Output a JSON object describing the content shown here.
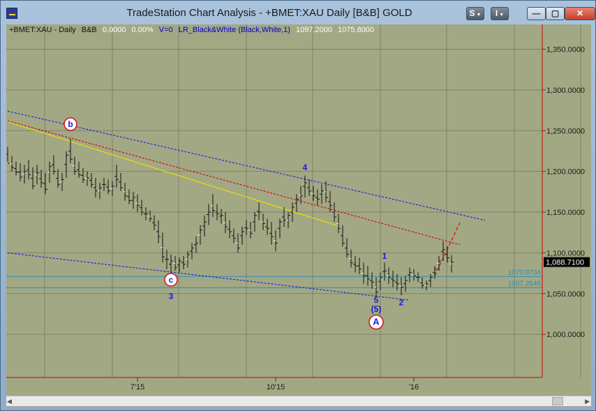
{
  "window": {
    "title": "TradeStation Chart Analysis - +BMET:XAU Daily [B&B] GOLD",
    "buttons": {
      "s_label": "S",
      "i_label": "I",
      "minimize_label": "—",
      "maximize_label": "▢",
      "close_label": "✕"
    }
  },
  "info_line": {
    "symbol": "+BMET:XAU - Daily",
    "datafeed": "B&B",
    "change": "0.0000",
    "change_pct": "0.00%",
    "volume": "V=0",
    "indicator": "LR_Black&White (Black,White,1)",
    "high": "1097.2000",
    "low": "1075.8000"
  },
  "colors": {
    "background": "#a3a884",
    "grid": "#7f8066",
    "axis_line": "#cc0000",
    "price_text": "#1a1a1a",
    "wave_label": "#1a1ad8",
    "channel": "#1b2ad9",
    "midline": "#cc1111",
    "trendline": "#e8e000",
    "horizontal_level": "#2b8fb5",
    "last_price_box": "#000000"
  },
  "chart_data": {
    "type": "bar",
    "instrument": "+BMET:XAU",
    "interval": "Daily",
    "x_axis_labels": [
      "7'15",
      "10'15",
      "'16"
    ],
    "y_axis_labels": [
      "1,000.0000",
      "1,050.0000",
      "1,100.0000",
      "1,150.0000",
      "1,200.0000",
      "1,250.0000",
      "1,300.0000",
      "1,350.0000"
    ],
    "ylim": [
      947,
      1365
    ],
    "y_ticks": [
      1000,
      1050,
      1100,
      1150,
      1200,
      1250,
      1300,
      1350
    ],
    "last_price": {
      "value": 1088.71,
      "label": "1,088.7100"
    },
    "horizontal_levels": [
      {
        "value": 1070.9734,
        "label": "1070.9734"
      },
      {
        "value": 1057.2646,
        "label": "1057.2646"
      }
    ],
    "wave_labels": [
      {
        "text": "b",
        "circled": true,
        "bar": 15,
        "price": 1258
      },
      {
        "text": "c",
        "circled": true,
        "bar": 39,
        "price": 1067
      },
      {
        "text": "3",
        "circled": false,
        "bar": 39,
        "price": 1047
      },
      {
        "text": "4",
        "circled": false,
        "bar": 71,
        "price": 1205
      },
      {
        "text": "1",
        "circled": false,
        "bar": 90,
        "price": 1096
      },
      {
        "text": "5",
        "circled": false,
        "bar": 88,
        "price": 1042
      },
      {
        "text": "(5)",
        "circled": false,
        "bar": 88,
        "price": 1031
      },
      {
        "text": "2",
        "circled": false,
        "bar": 94,
        "price": 1039
      },
      {
        "text": "A",
        "circled": true,
        "bar": 88,
        "price": 1015
      }
    ],
    "channel_lines": [
      {
        "name": "upper",
        "from": [
          0,
          1274
        ],
        "to": [
          114,
          1140
        ]
      },
      {
        "name": "lower",
        "from": [
          0,
          1100
        ],
        "to": [
          96,
          1042
        ]
      },
      {
        "name": "mid",
        "from": [
          0,
          1262
        ],
        "to": [
          108,
          1110
        ]
      },
      {
        "name": "trend",
        "from": [
          0,
          1261
        ],
        "to": [
          79,
          1133
        ]
      }
    ],
    "projection": {
      "from": [
        102,
        1072
      ],
      "to": [
        108,
        1137
      ]
    },
    "ohlc": [
      [
        1230,
        1212,
        1210
      ],
      [
        1219,
        1200,
        1205
      ],
      [
        1212,
        1195,
        1199
      ],
      [
        1210,
        1188,
        1193
      ],
      [
        1208,
        1185,
        1200
      ],
      [
        1214,
        1190,
        1196
      ],
      [
        1205,
        1178,
        1182
      ],
      [
        1208,
        1184,
        1198
      ],
      [
        1202,
        1180,
        1186
      ],
      [
        1198,
        1172,
        1178
      ],
      [
        1212,
        1186,
        1206
      ],
      [
        1220,
        1196,
        1200
      ],
      [
        1203,
        1180,
        1184
      ],
      [
        1198,
        1176,
        1190
      ],
      [
        1225,
        1192,
        1220
      ],
      [
        1240,
        1210,
        1215
      ],
      [
        1218,
        1196,
        1200
      ],
      [
        1212,
        1192,
        1196
      ],
      [
        1204,
        1186,
        1190
      ],
      [
        1200,
        1182,
        1192
      ],
      [
        1198,
        1180,
        1184
      ],
      [
        1192,
        1168,
        1176
      ],
      [
        1186,
        1166,
        1180
      ],
      [
        1192,
        1176,
        1184
      ],
      [
        1190,
        1172,
        1176
      ],
      [
        1188,
        1170,
        1182
      ],
      [
        1208,
        1180,
        1190
      ],
      [
        1198,
        1176,
        1180
      ],
      [
        1186,
        1164,
        1170
      ],
      [
        1178,
        1160,
        1164
      ],
      [
        1175,
        1154,
        1168
      ],
      [
        1172,
        1150,
        1158
      ],
      [
        1165,
        1146,
        1150
      ],
      [
        1156,
        1140,
        1148
      ],
      [
        1152,
        1138,
        1142
      ],
      [
        1146,
        1128,
        1134
      ],
      [
        1140,
        1112,
        1120
      ],
      [
        1125,
        1088,
        1095
      ],
      [
        1104,
        1080,
        1092
      ],
      [
        1098,
        1074,
        1090
      ],
      [
        1096,
        1078,
        1082
      ],
      [
        1094,
        1076,
        1090
      ],
      [
        1096,
        1080,
        1086
      ],
      [
        1102,
        1082,
        1098
      ],
      [
        1112,
        1092,
        1106
      ],
      [
        1120,
        1100,
        1112
      ],
      [
        1134,
        1110,
        1128
      ],
      [
        1146,
        1120,
        1138
      ],
      [
        1160,
        1134,
        1150
      ],
      [
        1172,
        1144,
        1152
      ],
      [
        1160,
        1140,
        1148
      ],
      [
        1154,
        1136,
        1146
      ],
      [
        1150,
        1124,
        1132
      ],
      [
        1140,
        1118,
        1126
      ],
      [
        1130,
        1112,
        1118
      ],
      [
        1124,
        1100,
        1106
      ],
      [
        1132,
        1110,
        1126
      ],
      [
        1140,
        1122,
        1130
      ],
      [
        1138,
        1118,
        1124
      ],
      [
        1150,
        1126,
        1146
      ],
      [
        1162,
        1140,
        1150
      ],
      [
        1148,
        1128,
        1136
      ],
      [
        1142,
        1122,
        1130
      ],
      [
        1138,
        1110,
        1120
      ],
      [
        1128,
        1102,
        1112
      ],
      [
        1142,
        1118,
        1138
      ],
      [
        1156,
        1132,
        1140
      ],
      [
        1150,
        1130,
        1146
      ],
      [
        1162,
        1138,
        1156
      ],
      [
        1172,
        1150,
        1166
      ],
      [
        1182,
        1160,
        1170
      ],
      [
        1195,
        1168,
        1186
      ],
      [
        1190,
        1170,
        1176
      ],
      [
        1182,
        1164,
        1170
      ],
      [
        1178,
        1158,
        1166
      ],
      [
        1184,
        1160,
        1176
      ],
      [
        1188,
        1162,
        1168
      ],
      [
        1176,
        1150,
        1158
      ],
      [
        1162,
        1138,
        1144
      ],
      [
        1148,
        1124,
        1130
      ],
      [
        1134,
        1108,
        1112
      ],
      [
        1118,
        1094,
        1098
      ],
      [
        1104,
        1082,
        1088
      ],
      [
        1096,
        1076,
        1084
      ],
      [
        1094,
        1074,
        1080
      ],
      [
        1088,
        1062,
        1072
      ],
      [
        1084,
        1060,
        1068
      ],
      [
        1076,
        1056,
        1064
      ],
      [
        1070,
        1046,
        1052
      ],
      [
        1076,
        1054,
        1070
      ],
      [
        1088,
        1066,
        1078
      ],
      [
        1082,
        1062,
        1070
      ],
      [
        1078,
        1058,
        1066
      ],
      [
        1074,
        1054,
        1062
      ],
      [
        1070,
        1048,
        1058
      ],
      [
        1072,
        1052,
        1066
      ],
      [
        1082,
        1064,
        1076
      ],
      [
        1080,
        1066,
        1072
      ],
      [
        1076,
        1064,
        1070
      ],
      [
        1070,
        1056,
        1060
      ],
      [
        1066,
        1054,
        1062
      ],
      [
        1074,
        1058,
        1070
      ],
      [
        1084,
        1068,
        1080
      ],
      [
        1096,
        1078,
        1090
      ],
      [
        1114,
        1090,
        1104
      ],
      [
        1108,
        1088,
        1094
      ],
      [
        1097.2,
        1075.8,
        1088.71
      ]
    ]
  }
}
